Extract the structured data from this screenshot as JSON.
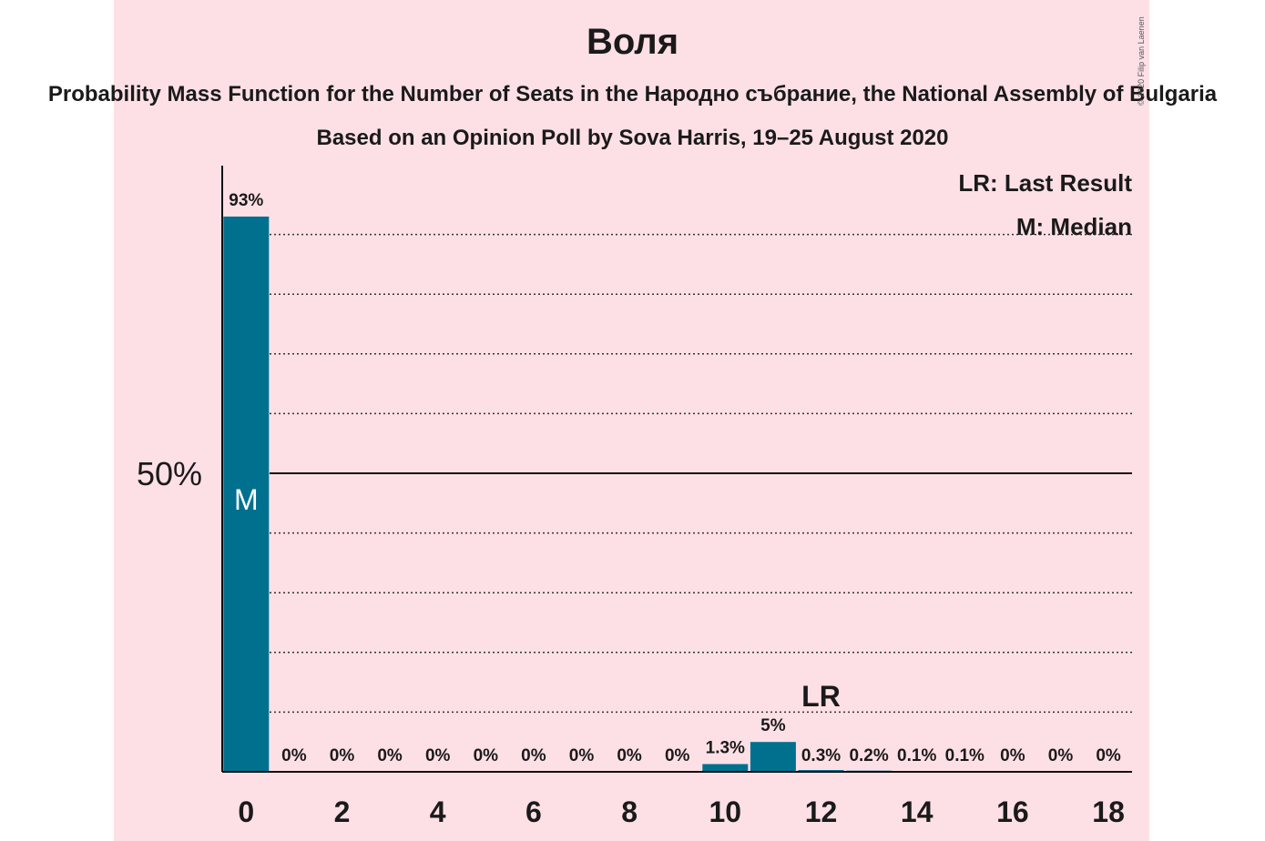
{
  "header": {
    "title": "Воля",
    "subtitle": "Probability Mass Function for the Number of Seats in the Народно събрание, the National Assembly of Bulgaria",
    "subtitle2": "Based on an Opinion Poll by Sova Harris, 19–25 August 2020",
    "copyright": "© 2020 Filip van Laenen"
  },
  "colors": {
    "bar": "#00708f",
    "background": "#fde0e6"
  },
  "chart_data": {
    "type": "bar",
    "x": [
      0,
      1,
      2,
      3,
      4,
      5,
      6,
      7,
      8,
      9,
      10,
      11,
      12,
      13,
      14,
      15,
      16,
      17,
      18
    ],
    "values": [
      93,
      0,
      0,
      0,
      0,
      0,
      0,
      0,
      0,
      0,
      1.3,
      5,
      0.3,
      0.2,
      0.1,
      0.1,
      0,
      0,
      0
    ],
    "data_labels": [
      "93%",
      "0%",
      "0%",
      "0%",
      "0%",
      "0%",
      "0%",
      "0%",
      "0%",
      "0%",
      "1.3%",
      "5%",
      "0.3%",
      "0.2%",
      "0.1%",
      "0.1%",
      "0%",
      "0%",
      "0%"
    ],
    "xticks": [
      0,
      2,
      4,
      6,
      8,
      10,
      12,
      14,
      16,
      18
    ],
    "xtick_labels": [
      "0",
      "2",
      "4",
      "6",
      "8",
      "10",
      "12",
      "14",
      "16",
      "18"
    ],
    "ytick_label": "50%",
    "ylim": [
      0,
      100
    ],
    "grid_values": [
      10,
      20,
      30,
      40,
      60,
      70,
      80,
      90
    ],
    "major_value": 50,
    "median_seat": 0,
    "median_label": "M",
    "last_result_seat": 12,
    "last_result_label": "LR",
    "legend": [
      "LR: Last Result",
      "M: Median"
    ],
    "legend_position": "top-right"
  }
}
